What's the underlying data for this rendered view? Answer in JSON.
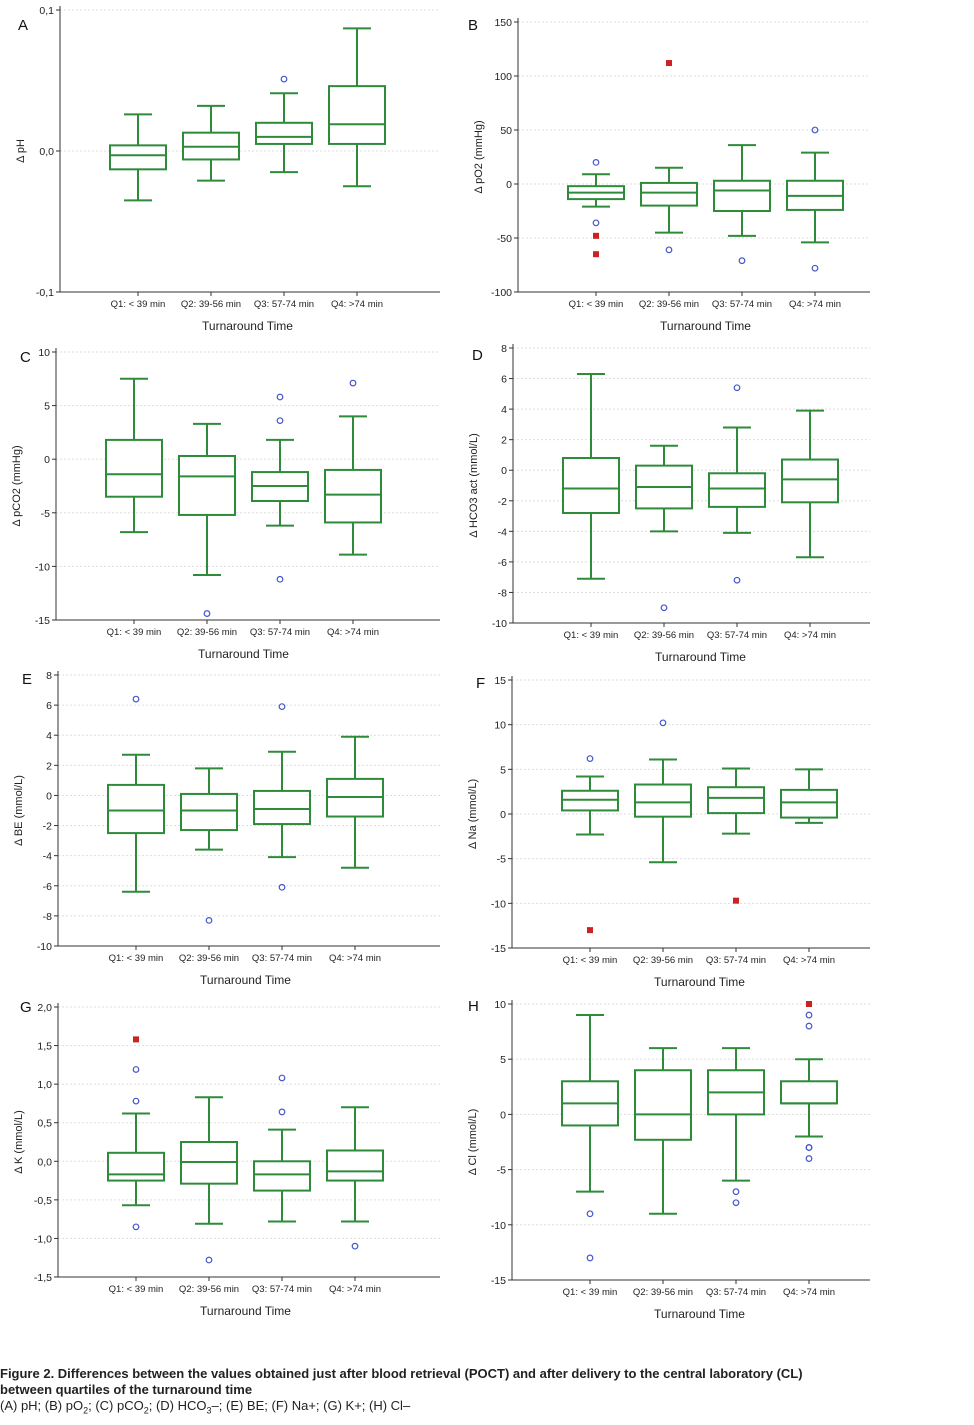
{
  "caption": {
    "line1": "Figure 2. Differences between the values obtained just after blood retrieval (POCT) and after delivery to the central laboratory (CL)",
    "line2": "between quartiles of the turnaround time",
    "line3": {
      "a": "(A) pH; (B) pO",
      "a_sub": "2",
      "b": "; (C) pCO",
      "b_sub": "2",
      "c": "; (D) HCO",
      "c_sub": "3",
      "d": "–; (E) BE; (F) Na+; (G) K+; (H) Cl–"
    }
  },
  "colors": {
    "box": "#2e8b3a",
    "outlier_open": "#4455cc",
    "outlier_filled": "#cc2222",
    "axis": "#333333",
    "grid": "#dddddd"
  },
  "chart_data": [
    {
      "type": "box",
      "panel": "A",
      "xlabel": "Turnaround Time",
      "ylabel": "Δ pH",
      "ylim": [
        -0.1,
        0.1
      ],
      "ticks": [
        -0.1,
        0,
        0.1
      ],
      "tick_labels": [
        "-0,1",
        "0,0",
        "0,1"
      ],
      "categories": [
        "Q1: < 39 min",
        "Q2: 39-56 min",
        "Q3: 57-74 min",
        "Q4: >74 min"
      ],
      "boxes": [
        {
          "whisker_low": -0.035,
          "q1": -0.013,
          "median": -0.003,
          "q3": 0.004,
          "whisker_high": 0.026,
          "outliers": [],
          "far_outliers": []
        },
        {
          "whisker_low": -0.021,
          "q1": -0.006,
          "median": 0.003,
          "q3": 0.013,
          "whisker_high": 0.032,
          "outliers": [],
          "far_outliers": []
        },
        {
          "whisker_low": -0.015,
          "q1": 0.005,
          "median": 0.01,
          "q3": 0.02,
          "whisker_high": 0.041,
          "outliers": [
            0.051
          ],
          "far_outliers": []
        },
        {
          "whisker_low": -0.025,
          "q1": 0.005,
          "median": 0.019,
          "q3": 0.046,
          "whisker_high": 0.087,
          "outliers": [],
          "far_outliers": []
        }
      ]
    },
    {
      "type": "box",
      "panel": "B",
      "xlabel": "Turnaround Time",
      "ylabel": "Δ pO2 (mmHg)",
      "ylim": [
        -100,
        150
      ],
      "ticks": [
        -100,
        -50,
        0,
        50,
        100,
        150
      ],
      "tick_labels": [
        "-100",
        "-50",
        "0",
        "50",
        "100",
        "150"
      ],
      "categories": [
        "Q1: < 39 min",
        "Q2: 39-56 min",
        "Q3: 57-74 min",
        "Q4: >74 min"
      ],
      "boxes": [
        {
          "whisker_low": -21,
          "q1": -14,
          "median": -8,
          "q3": -2,
          "whisker_high": 9,
          "outliers": [
            20,
            -36
          ],
          "far_outliers": [
            -48,
            -65
          ]
        },
        {
          "whisker_low": -45,
          "q1": -20,
          "median": -8,
          "q3": 1,
          "whisker_high": 15,
          "outliers": [
            -61
          ],
          "far_outliers": [
            112
          ]
        },
        {
          "whisker_low": -48,
          "q1": -25,
          "median": -6,
          "q3": 3,
          "whisker_high": 36,
          "outliers": [
            -71
          ],
          "far_outliers": []
        },
        {
          "whisker_low": -54,
          "q1": -24,
          "median": -11,
          "q3": 3,
          "whisker_high": 29,
          "outliers": [
            50,
            -78
          ],
          "far_outliers": []
        }
      ]
    },
    {
      "type": "box",
      "panel": "C",
      "xlabel": "Turnaround Time",
      "ylabel": "Δ pCO2 (mmHg)",
      "ylim": [
        -15,
        10
      ],
      "ticks": [
        -15,
        -10,
        -5,
        0,
        5,
        10
      ],
      "tick_labels": [
        "-15",
        "-10",
        "-5",
        "0",
        "5",
        "10"
      ],
      "categories": [
        "Q1: < 39 min",
        "Q2: 39-56 min",
        "Q3: 57-74 min",
        "Q4: >74 min"
      ],
      "boxes": [
        {
          "whisker_low": -6.8,
          "q1": -3.5,
          "median": -1.4,
          "q3": 1.8,
          "whisker_high": 7.5,
          "outliers": [],
          "far_outliers": []
        },
        {
          "whisker_low": -10.8,
          "q1": -5.2,
          "median": -1.6,
          "q3": 0.3,
          "whisker_high": 3.3,
          "outliers": [
            -14.4
          ],
          "far_outliers": []
        },
        {
          "whisker_low": -6.2,
          "q1": -3.9,
          "median": -2.5,
          "q3": -1.2,
          "whisker_high": 1.8,
          "outliers": [
            5.8,
            3.6,
            -11.2
          ],
          "far_outliers": []
        },
        {
          "whisker_low": -8.9,
          "q1": -5.9,
          "median": -3.3,
          "q3": -1.0,
          "whisker_high": 4.0,
          "outliers": [
            7.1
          ],
          "far_outliers": []
        }
      ]
    },
    {
      "type": "box",
      "panel": "D",
      "xlabel": "Turnaround Time",
      "ylabel": "Δ HCO3 act (mmol/L)",
      "ylim": [
        -10,
        8
      ],
      "ticks": [
        -10,
        -8,
        -6,
        -4,
        -2,
        0,
        2,
        4,
        6,
        8
      ],
      "tick_labels": [
        "-10",
        "-8",
        "-6",
        "-4",
        "-2",
        "0",
        "2",
        "4",
        "6",
        "8"
      ],
      "categories": [
        "Q1: < 39 min",
        "Q2: 39-56 min",
        "Q3: 57-74 min",
        "Q4: >74 min"
      ],
      "boxes": [
        {
          "whisker_low": -7.1,
          "q1": -2.8,
          "median": -1.2,
          "q3": 0.8,
          "whisker_high": 6.3,
          "outliers": [],
          "far_outliers": []
        },
        {
          "whisker_low": -4.0,
          "q1": -2.5,
          "median": -1.1,
          "q3": 0.3,
          "whisker_high": 1.6,
          "outliers": [
            -9.0
          ],
          "far_outliers": []
        },
        {
          "whisker_low": -4.1,
          "q1": -2.4,
          "median": -1.2,
          "q3": -0.2,
          "whisker_high": 2.8,
          "outliers": [
            5.4,
            -7.2
          ],
          "far_outliers": []
        },
        {
          "whisker_low": -5.7,
          "q1": -2.1,
          "median": -0.6,
          "q3": 0.7,
          "whisker_high": 3.9,
          "outliers": [],
          "far_outliers": []
        }
      ]
    },
    {
      "type": "box",
      "panel": "E",
      "xlabel": "Turnaround Time",
      "ylabel": "Δ BE (mmol/L)",
      "ylim": [
        -10,
        8
      ],
      "ticks": [
        -10,
        -8,
        -6,
        -4,
        -2,
        0,
        2,
        4,
        6,
        8
      ],
      "tick_labels": [
        "-10",
        "-8",
        "-6",
        "-4",
        "-2",
        "0",
        "2",
        "4",
        "6",
        "8"
      ],
      "categories": [
        "Q1: < 39 min",
        "Q2: 39-56 min",
        "Q3: 57-74 min",
        "Q4: >74 min"
      ],
      "boxes": [
        {
          "whisker_low": -6.4,
          "q1": -2.5,
          "median": -1.0,
          "q3": 0.7,
          "whisker_high": 2.7,
          "outliers": [
            6.4
          ],
          "far_outliers": []
        },
        {
          "whisker_low": -3.6,
          "q1": -2.3,
          "median": -1.0,
          "q3": 0.1,
          "whisker_high": 1.8,
          "outliers": [
            -8.3
          ],
          "far_outliers": []
        },
        {
          "whisker_low": -4.1,
          "q1": -1.9,
          "median": -0.9,
          "q3": 0.3,
          "whisker_high": 2.9,
          "outliers": [
            5.9,
            -6.1
          ],
          "far_outliers": []
        },
        {
          "whisker_low": -4.8,
          "q1": -1.4,
          "median": -0.1,
          "q3": 1.1,
          "whisker_high": 3.9,
          "outliers": [],
          "far_outliers": []
        }
      ]
    },
    {
      "type": "box",
      "panel": "F",
      "xlabel": "Turnaround Time",
      "ylabel": "Δ Na (mmol/L)",
      "ylim": [
        -15,
        15
      ],
      "ticks": [
        -15,
        -10,
        -5,
        0,
        5,
        10,
        15
      ],
      "tick_labels": [
        "-15",
        "-10",
        "-5",
        "0",
        "5",
        "10",
        "15"
      ],
      "categories": [
        "Q1: < 39 min",
        "Q2: 39-56 min",
        "Q3: 57-74 min",
        "Q4: >74 min"
      ],
      "boxes": [
        {
          "whisker_low": -2.3,
          "q1": 0.4,
          "median": 1.6,
          "q3": 2.6,
          "whisker_high": 4.2,
          "outliers": [
            6.2
          ],
          "far_outliers": [
            -13.0
          ]
        },
        {
          "whisker_low": -5.4,
          "q1": -0.3,
          "median": 1.3,
          "q3": 3.3,
          "whisker_high": 6.1,
          "outliers": [
            10.2
          ],
          "far_outliers": []
        },
        {
          "whisker_low": -2.2,
          "q1": 0.1,
          "median": 1.8,
          "q3": 3.0,
          "whisker_high": 5.1,
          "outliers": [],
          "far_outliers": [
            -9.7
          ]
        },
        {
          "whisker_low": -1.0,
          "q1": -0.4,
          "median": 1.3,
          "q3": 2.7,
          "whisker_high": 5.0,
          "outliers": [],
          "far_outliers": []
        }
      ]
    },
    {
      "type": "box",
      "panel": "G",
      "xlabel": "Turnaround Time",
      "ylabel": "Δ K (mmol/L)",
      "ylim": [
        -1.5,
        2.0
      ],
      "ticks": [
        -1.5,
        -1.0,
        -0.5,
        0,
        0.5,
        1.0,
        1.5,
        2.0
      ],
      "tick_labels": [
        "-1,5",
        "-1,0",
        "-0,5",
        "0,0",
        "0,5",
        "1,0",
        "1,5",
        "2,0"
      ],
      "categories": [
        "Q1: < 39 min",
        "Q2: 39-56 min",
        "Q3: 57-74 min",
        "Q4: >74 min"
      ],
      "boxes": [
        {
          "whisker_low": -0.57,
          "q1": -0.25,
          "median": -0.17,
          "q3": 0.11,
          "whisker_high": 0.62,
          "outliers": [
            1.19,
            0.78,
            -0.85
          ],
          "far_outliers": [
            1.58
          ]
        },
        {
          "whisker_low": -0.81,
          "q1": -0.29,
          "median": -0.01,
          "q3": 0.25,
          "whisker_high": 0.83,
          "outliers": [
            -1.28
          ],
          "far_outliers": []
        },
        {
          "whisker_low": -0.78,
          "q1": -0.38,
          "median": -0.17,
          "q3": 0.0,
          "whisker_high": 0.41,
          "outliers": [
            1.08,
            0.64
          ],
          "far_outliers": []
        },
        {
          "whisker_low": -0.78,
          "q1": -0.25,
          "median": -0.13,
          "q3": 0.14,
          "whisker_high": 0.7,
          "outliers": [
            -1.1
          ],
          "far_outliers": []
        }
      ]
    },
    {
      "type": "box",
      "panel": "H",
      "xlabel": "Turnaround Time",
      "ylabel": "Δ Cl (mmol/L)",
      "ylim": [
        -15,
        10
      ],
      "ticks": [
        -15,
        -10,
        -5,
        0,
        5,
        10
      ],
      "tick_labels": [
        "-15",
        "-10",
        "-5",
        "0",
        "5",
        "10"
      ],
      "categories": [
        "Q1: < 39 min",
        "Q2: 39-56 min",
        "Q3: 57-74 min",
        "Q4: >74 min"
      ],
      "boxes": [
        {
          "whisker_low": -7,
          "q1": -1,
          "median": 1,
          "q3": 3,
          "whisker_high": 9,
          "outliers": [
            -9,
            -13
          ],
          "far_outliers": []
        },
        {
          "whisker_low": -9,
          "q1": -2.3,
          "median": 0,
          "q3": 4,
          "whisker_high": 6,
          "outliers": [],
          "far_outliers": []
        },
        {
          "whisker_low": -6,
          "q1": 0,
          "median": 2,
          "q3": 4,
          "whisker_high": 6,
          "outliers": [
            -7,
            -8
          ],
          "far_outliers": []
        },
        {
          "whisker_low": -2,
          "q1": 1,
          "median": 1,
          "q3": 3,
          "whisker_high": 5,
          "outliers": [
            9,
            8,
            -3,
            -3,
            -4
          ],
          "far_outliers": [
            10
          ]
        }
      ]
    }
  ]
}
